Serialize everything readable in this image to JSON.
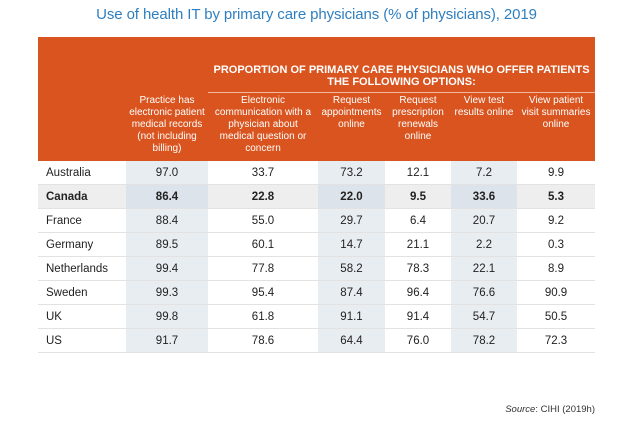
{
  "title": "Use of health IT by primary care physicians (% of physicians), 2019",
  "group_header": "PROPORTION OF PRIMARY CARE PHYSICIANS WHO OFFER PATIENTS THE FOLLOWING OPTIONS:",
  "columns": [
    "Practice has electronic patient medical records (not including billing)",
    "Electronic communication with a physician about medical question or concern",
    "Request appointments online",
    "Request prescription renewals online",
    "View test results online",
    "View patient visit summaries online"
  ],
  "rows": [
    {
      "country": "Australia",
      "values": [
        "97.0",
        "33.7",
        "73.2",
        "12.1",
        "7.2",
        "9.9"
      ]
    },
    {
      "country": "Canada",
      "values": [
        "86.4",
        "22.8",
        "22.0",
        "9.5",
        "33.6",
        "5.3"
      ]
    },
    {
      "country": "France",
      "values": [
        "88.4",
        "55.0",
        "29.7",
        "6.4",
        "20.7",
        "9.2"
      ]
    },
    {
      "country": "Germany",
      "values": [
        "89.5",
        "60.1",
        "14.7",
        "21.1",
        "2.2",
        "0.3"
      ]
    },
    {
      "country": "Netherlands",
      "values": [
        "99.4",
        "77.8",
        "58.2",
        "78.3",
        "22.1",
        "8.9"
      ]
    },
    {
      "country": "Sweden",
      "values": [
        "99.3",
        "95.4",
        "87.4",
        "96.4",
        "76.6",
        "90.9"
      ]
    },
    {
      "country": "UK",
      "values": [
        "99.8",
        "61.8",
        "91.1",
        "91.4",
        "54.7",
        "50.5"
      ]
    },
    {
      "country": "US",
      "values": [
        "91.7",
        "78.6",
        "64.4",
        "76.0",
        "78.2",
        "72.3"
      ]
    }
  ],
  "source": {
    "label": "Source",
    "text": ": CIHI (2019h)"
  },
  "colors": {
    "header_bg": "#d9541e",
    "title": "#2f7fc0",
    "shade": "#e8edf2"
  }
}
